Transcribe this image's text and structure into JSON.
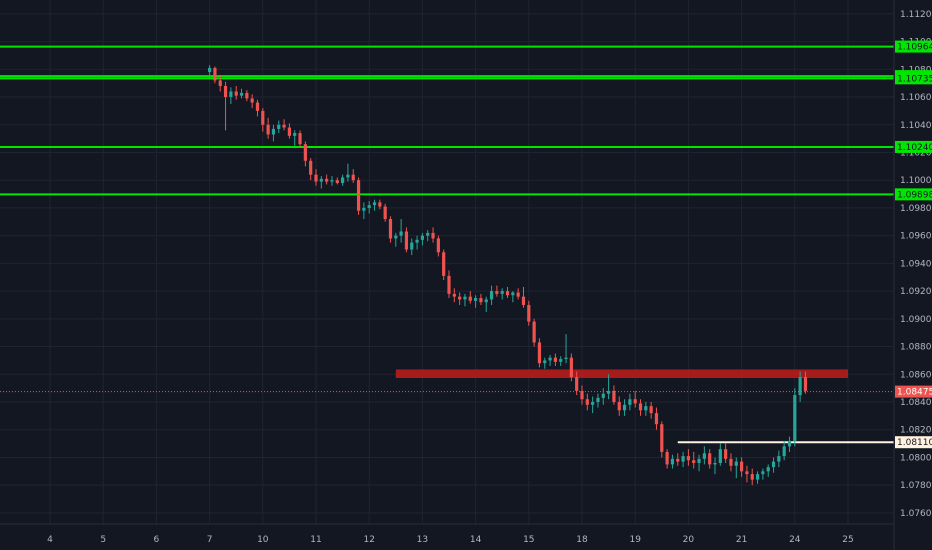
{
  "chart_data": {
    "type": "candlestick",
    "title": "",
    "ylim": [
      1.0752,
      1.113
    ],
    "y_ticks": [
      "1.11200",
      "1.11000",
      "1.10800",
      "1.10600",
      "1.10400",
      "1.10200",
      "1.10000",
      "1.09800",
      "1.09600",
      "1.09400",
      "1.09200",
      "1.09000",
      "1.08800",
      "1.08600",
      "1.08400",
      "1.08200",
      "1.08000",
      "1.07800",
      "1.07600"
    ],
    "x_ticks": [
      "4",
      "5",
      "6",
      "7",
      "10",
      "11",
      "12",
      "13",
      "14",
      "15",
      "18",
      "19",
      "20",
      "21",
      "24",
      "25"
    ],
    "x_tick_index": [
      0,
      1,
      2,
      3,
      4,
      5,
      6,
      7,
      8,
      9,
      10,
      11,
      12,
      13,
      14,
      15
    ],
    "colors": {
      "up": "#26a69a",
      "down": "#ef5350",
      "support": "#00e600",
      "zone": "#b71c1c",
      "white_level": "#fff3e0",
      "current": "#ef5350"
    },
    "horizontal_levels": [
      {
        "label": "1.10964",
        "value": 1.10964,
        "color": "#00e600"
      },
      {
        "label": "1.10751",
        "value": 1.10751,
        "color": "#00e600"
      },
      {
        "label": "1.10735",
        "value": 1.10735,
        "color": "#00e600"
      },
      {
        "label": "1.10240",
        "value": 1.1024,
        "color": "#00e600"
      },
      {
        "label": "1.09898",
        "value": 1.09898,
        "color": "#00e600"
      },
      {
        "label": "1.08110",
        "value": 1.0811,
        "color": "#fff3e0",
        "start_day": 11.8
      }
    ],
    "resistance_zone": {
      "from": 1.08573,
      "to": 1.08635,
      "start_day": 6.5,
      "end_day": 15
    },
    "current_price": {
      "label": "1.08475",
      "value": 1.08475
    },
    "candles": [
      [
        3.0,
        1.1078,
        1.1083,
        1.1074,
        1.1081
      ],
      [
        3.1,
        1.1081,
        1.1082,
        1.107,
        1.1072
      ],
      [
        3.2,
        1.1072,
        1.1076,
        1.1064,
        1.1068
      ],
      [
        3.3,
        1.1068,
        1.1071,
        1.1036,
        1.106
      ],
      [
        3.4,
        1.106,
        1.1067,
        1.1055,
        1.1064
      ],
      [
        3.5,
        1.1064,
        1.1068,
        1.1058,
        1.1061
      ],
      [
        3.6,
        1.1061,
        1.1066,
        1.1059,
        1.1063
      ],
      [
        3.7,
        1.1063,
        1.1065,
        1.1057,
        1.1059
      ],
      [
        3.8,
        1.1059,
        1.1062,
        1.1052,
        1.1056
      ],
      [
        3.9,
        1.1056,
        1.1058,
        1.1046,
        1.105
      ],
      [
        4.0,
        1.105,
        1.1052,
        1.1035,
        1.104
      ],
      [
        4.1,
        1.104,
        1.1045,
        1.103,
        1.1033
      ],
      [
        4.2,
        1.1033,
        1.104,
        1.1028,
        1.1037
      ],
      [
        4.3,
        1.1037,
        1.1043,
        1.1034,
        1.104
      ],
      [
        4.4,
        1.104,
        1.1044,
        1.1036,
        1.1038
      ],
      [
        4.5,
        1.1038,
        1.1041,
        1.103,
        1.1032
      ],
      [
        4.6,
        1.1032,
        1.1036,
        1.1025,
        1.1034
      ],
      [
        4.7,
        1.1034,
        1.1036,
        1.1024,
        1.1026
      ],
      [
        4.8,
        1.1026,
        1.1028,
        1.101,
        1.1014
      ],
      [
        4.9,
        1.1014,
        1.1016,
        1.1,
        1.1004
      ],
      [
        5.0,
        1.1004,
        1.1008,
        1.0996,
        1.0999
      ],
      [
        5.1,
        1.0999,
        1.1003,
        1.0994,
        1.1001
      ],
      [
        5.2,
        1.1001,
        1.1004,
        1.0997,
        1.0999
      ],
      [
        5.3,
        1.0999,
        1.1003,
        1.0996,
        1.1
      ],
      [
        5.4,
        1.1,
        1.1002,
        1.0997,
        1.0998
      ],
      [
        5.5,
        1.0998,
        1.1004,
        1.0996,
        1.1002
      ],
      [
        5.6,
        1.1002,
        1.1012,
        1.0999,
        1.1004
      ],
      [
        5.7,
        1.1004,
        1.1008,
        1.0998,
        1.1
      ],
      [
        5.8,
        1.1,
        1.1002,
        1.0975,
        1.0978
      ],
      [
        5.9,
        1.0978,
        1.0984,
        1.0972,
        1.098
      ],
      [
        6.0,
        1.098,
        1.0985,
        1.0976,
        1.0982
      ],
      [
        6.1,
        1.0982,
        1.0986,
        1.0978,
        1.0984
      ],
      [
        6.2,
        1.0984,
        1.0986,
        1.0979,
        1.0981
      ],
      [
        6.3,
        1.0981,
        1.0983,
        1.097,
        1.0972
      ],
      [
        6.4,
        1.0972,
        1.0974,
        1.0955,
        1.0958
      ],
      [
        6.5,
        1.0958,
        1.0962,
        1.0952,
        1.096
      ],
      [
        6.6,
        1.096,
        1.0972,
        1.0955,
        1.0963
      ],
      [
        6.7,
        1.0963,
        1.0966,
        1.0948,
        1.095
      ],
      [
        6.8,
        1.095,
        1.0958,
        1.0946,
        1.0955
      ],
      [
        6.9,
        1.0955,
        1.096,
        1.095,
        1.0957
      ],
      [
        7.0,
        1.0957,
        1.0962,
        1.0953,
        1.096
      ],
      [
        7.1,
        1.096,
        1.0964,
        1.0956,
        1.0962
      ],
      [
        7.2,
        1.0962,
        1.0966,
        1.0955,
        1.0958
      ],
      [
        7.3,
        1.0958,
        1.096,
        1.0945,
        1.0948
      ],
      [
        7.4,
        1.0948,
        1.095,
        1.0928,
        1.0931
      ],
      [
        7.5,
        1.0931,
        1.0935,
        1.0915,
        1.0918
      ],
      [
        7.6,
        1.0918,
        1.0922,
        1.0912,
        1.0916
      ],
      [
        7.7,
        1.0916,
        1.0919,
        1.091,
        1.0914
      ],
      [
        7.8,
        1.0914,
        1.0918,
        1.0909,
        1.0916
      ],
      [
        7.9,
        1.0916,
        1.092,
        1.0911,
        1.0913
      ],
      [
        8.0,
        1.0913,
        1.0917,
        1.0908,
        1.0915
      ],
      [
        8.1,
        1.0915,
        1.0918,
        1.091,
        1.0912
      ],
      [
        8.2,
        1.0912,
        1.0916,
        1.0905,
        1.0914
      ],
      [
        8.3,
        1.0914,
        1.0924,
        1.091,
        1.092
      ],
      [
        8.4,
        1.092,
        1.0924,
        1.0916,
        1.0918
      ],
      [
        8.5,
        1.0918,
        1.0922,
        1.0914,
        1.092
      ],
      [
        8.6,
        1.092,
        1.0923,
        1.0915,
        1.0917
      ],
      [
        8.7,
        1.0917,
        1.092,
        1.0912,
        1.0919
      ],
      [
        8.8,
        1.0919,
        1.0922,
        1.0914,
        1.0916
      ],
      [
        8.9,
        1.0916,
        1.0923,
        1.0908,
        1.091
      ],
      [
        9.0,
        1.091,
        1.0913,
        1.0895,
        1.0898
      ],
      [
        9.1,
        1.0898,
        1.09,
        1.088,
        1.0883
      ],
      [
        9.2,
        1.0883,
        1.0886,
        1.0865,
        1.0868
      ],
      [
        9.3,
        1.0868,
        1.0872,
        1.0864,
        1.087
      ],
      [
        9.4,
        1.087,
        1.0874,
        1.0866,
        1.0872
      ],
      [
        9.5,
        1.0872,
        1.0875,
        1.0866,
        1.0869
      ],
      [
        9.6,
        1.0869,
        1.0873,
        1.0866,
        1.0871
      ],
      [
        9.7,
        1.0871,
        1.0889,
        1.0868,
        1.0872
      ],
      [
        9.8,
        1.0872,
        1.0875,
        1.0855,
        1.0858
      ],
      [
        9.9,
        1.0858,
        1.0862,
        1.0845,
        1.0848
      ],
      [
        10.0,
        1.0848,
        1.0852,
        1.0838,
        1.0842
      ],
      [
        10.1,
        1.0842,
        1.0846,
        1.0834,
        1.0838
      ],
      [
        10.2,
        1.0838,
        1.0844,
        1.0832,
        1.084
      ],
      [
        10.3,
        1.084,
        1.0846,
        1.0836,
        1.0843
      ],
      [
        10.4,
        1.0843,
        1.085,
        1.0838,
        1.0846
      ],
      [
        10.5,
        1.0846,
        1.086,
        1.0842,
        1.0848
      ],
      [
        10.6,
        1.0848,
        1.0852,
        1.0838,
        1.084
      ],
      [
        10.7,
        1.084,
        1.0844,
        1.083,
        1.0834
      ],
      [
        10.8,
        1.0834,
        1.0842,
        1.083,
        1.0838
      ],
      [
        10.9,
        1.0838,
        1.0846,
        1.0834,
        1.0842
      ],
      [
        11.0,
        1.0842,
        1.0848,
        1.0836,
        1.0839
      ],
      [
        11.1,
        1.0839,
        1.0842,
        1.083,
        1.0834
      ],
      [
        11.2,
        1.0834,
        1.084,
        1.083,
        1.0837
      ],
      [
        11.3,
        1.0837,
        1.084,
        1.0828,
        1.0832
      ],
      [
        11.4,
        1.0832,
        1.0836,
        1.082,
        1.0824
      ],
      [
        11.5,
        1.0824,
        1.0826,
        1.08,
        1.0804
      ],
      [
        11.6,
        1.0804,
        1.0806,
        1.0792,
        1.0795
      ],
      [
        11.7,
        1.0795,
        1.0802,
        1.0792,
        1.0799
      ],
      [
        11.8,
        1.0799,
        1.0803,
        1.0794,
        1.0797
      ],
      [
        11.9,
        1.0797,
        1.0804,
        1.0793,
        1.0801
      ],
      [
        12.0,
        1.0801,
        1.0806,
        1.0794,
        1.0798
      ],
      [
        12.1,
        1.0798,
        1.0804,
        1.0792,
        1.0796
      ],
      [
        12.2,
        1.0796,
        1.0802,
        1.079,
        1.0799
      ],
      [
        12.3,
        1.0799,
        1.0808,
        1.0795,
        1.0803
      ],
      [
        12.4,
        1.0803,
        1.0806,
        1.0792,
        1.0795
      ],
      [
        12.5,
        1.0795,
        1.08,
        1.0788,
        1.0796
      ],
      [
        12.6,
        1.0796,
        1.081,
        1.0794,
        1.0806
      ],
      [
        12.7,
        1.0806,
        1.081,
        1.0796,
        1.0799
      ],
      [
        12.8,
        1.0799,
        1.0803,
        1.079,
        1.0794
      ],
      [
        12.9,
        1.0794,
        1.08,
        1.0785,
        1.0797
      ],
      [
        13.0,
        1.0797,
        1.08,
        1.0786,
        1.079
      ],
      [
        13.1,
        1.079,
        1.0794,
        1.0782,
        1.0788
      ],
      [
        13.2,
        1.0788,
        1.0792,
        1.078,
        1.0784
      ],
      [
        13.3,
        1.0784,
        1.079,
        1.0781,
        1.0788
      ],
      [
        13.4,
        1.0788,
        1.0792,
        1.0784,
        1.079
      ],
      [
        13.5,
        1.079,
        1.0795,
        1.0786,
        1.0793
      ],
      [
        13.6,
        1.0793,
        1.08,
        1.0789,
        1.0797
      ],
      [
        13.7,
        1.0797,
        1.0805,
        1.0793,
        1.0801
      ],
      [
        13.8,
        1.0801,
        1.0812,
        1.0798,
        1.0808
      ],
      [
        13.9,
        1.0808,
        1.0815,
        1.0804,
        1.0812
      ],
      [
        14.0,
        1.0812,
        1.085,
        1.0808,
        1.0845
      ],
      [
        14.1,
        1.0845,
        1.0862,
        1.084,
        1.0858
      ],
      [
        14.2,
        1.0858,
        1.0862,
        1.0846,
        1.0848
      ]
    ]
  }
}
